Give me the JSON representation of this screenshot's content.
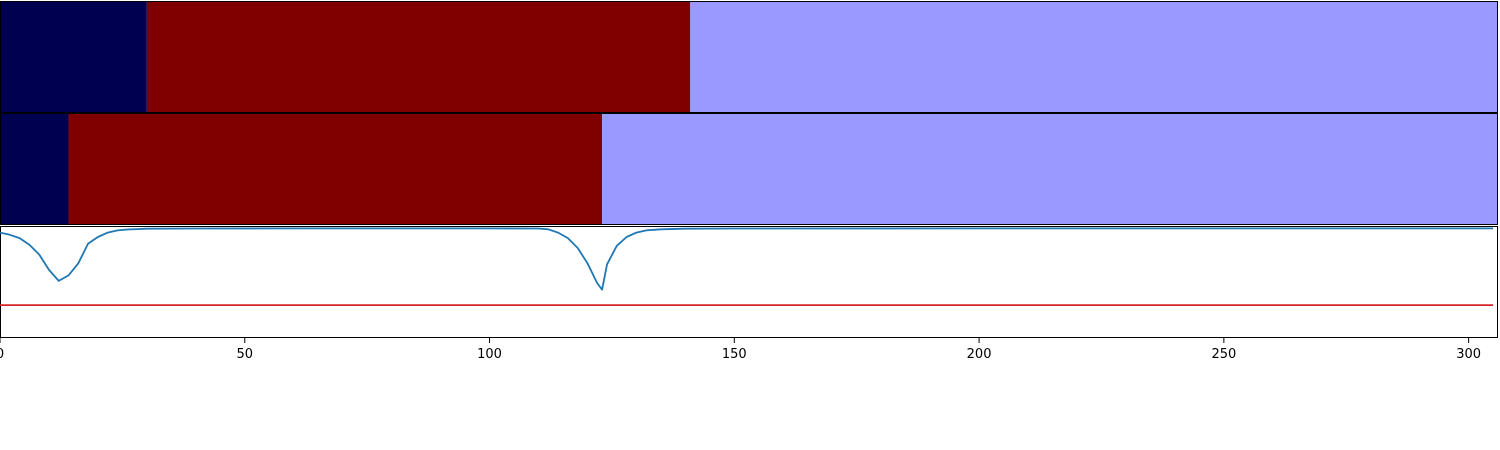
{
  "chart_data": [
    {
      "type": "segment-bar",
      "segments": [
        {
          "start": 0,
          "end": 30,
          "color": "#000050"
        },
        {
          "start": 30,
          "end": 141,
          "color": "#800000"
        },
        {
          "start": 141,
          "end": 306,
          "color": "#9999ff"
        }
      ]
    },
    {
      "type": "segment-bar",
      "segments": [
        {
          "start": 0,
          "end": 14,
          "color": "#000050"
        },
        {
          "start": 14,
          "end": 123,
          "color": "#800000"
        },
        {
          "start": 123,
          "end": 306,
          "color": "#9999ff"
        }
      ]
    },
    {
      "type": "line",
      "xlim": [
        0,
        306
      ],
      "ylim": [
        -1.0,
        0.02
      ],
      "grid": false,
      "series": [
        {
          "color": "#1f77b4",
          "x": [
            0,
            2,
            4,
            6,
            8,
            10,
            12,
            14,
            16,
            18,
            20,
            22,
            24,
            26,
            28,
            30,
            40,
            60,
            80,
            100,
            110,
            112,
            114,
            116,
            118,
            120,
            122,
            123,
            124,
            126,
            128,
            130,
            132,
            135,
            140,
            150,
            200,
            250,
            300,
            305
          ],
          "y": [
            -0.04,
            -0.06,
            -0.09,
            -0.15,
            -0.24,
            -0.38,
            -0.48,
            -0.43,
            -0.32,
            -0.14,
            -0.08,
            -0.04,
            -0.02,
            -0.012,
            -0.008,
            -0.005,
            -0.003,
            -0.002,
            -0.002,
            -0.002,
            -0.003,
            -0.01,
            -0.04,
            -0.09,
            -0.18,
            -0.32,
            -0.5,
            -0.56,
            -0.33,
            -0.16,
            -0.08,
            -0.04,
            -0.02,
            -0.01,
            -0.005,
            -0.003,
            -0.002,
            -0.002,
            -0.002,
            -0.002
          ]
        },
        {
          "color": "#d62728",
          "x": [
            0,
            305
          ],
          "y": [
            -0.7,
            -0.7
          ]
        }
      ],
      "xticks": [
        0,
        50,
        100,
        150,
        200,
        250,
        300
      ],
      "xtick_labels": [
        "0",
        "50",
        "100",
        "150",
        "200",
        "250",
        "300"
      ]
    }
  ]
}
